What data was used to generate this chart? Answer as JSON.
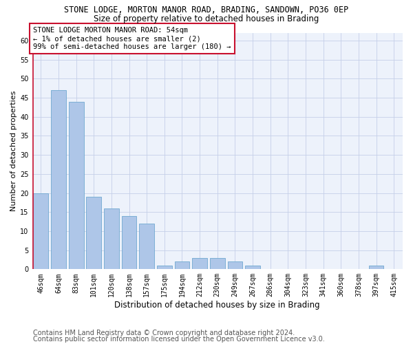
{
  "title1": "STONE LODGE, MORTON MANOR ROAD, BRADING, SANDOWN, PO36 0EP",
  "title2": "Size of property relative to detached houses in Brading",
  "xlabel": "Distribution of detached houses by size in Brading",
  "ylabel": "Number of detached properties",
  "categories": [
    "46sqm",
    "64sqm",
    "83sqm",
    "101sqm",
    "120sqm",
    "138sqm",
    "157sqm",
    "175sqm",
    "194sqm",
    "212sqm",
    "230sqm",
    "249sqm",
    "267sqm",
    "286sqm",
    "304sqm",
    "323sqm",
    "341sqm",
    "360sqm",
    "378sqm",
    "397sqm",
    "415sqm"
  ],
  "values": [
    20,
    47,
    44,
    19,
    16,
    14,
    12,
    1,
    2,
    3,
    3,
    2,
    1,
    0,
    0,
    0,
    0,
    0,
    0,
    1,
    0
  ],
  "bar_color": "#aec6e8",
  "bar_edge_color": "#6fa8d0",
  "highlight_line_color": "#c8102e",
  "annotation_text": "STONE LODGE MORTON MANOR ROAD: 54sqm\n← 1% of detached houses are smaller (2)\n99% of semi-detached houses are larger (180) →",
  "annotation_box_edge_color": "#c8102e",
  "ylim": [
    0,
    62
  ],
  "yticks": [
    0,
    5,
    10,
    15,
    20,
    25,
    30,
    35,
    40,
    45,
    50,
    55,
    60
  ],
  "footer1": "Contains HM Land Registry data © Crown copyright and database right 2024.",
  "footer2": "Contains public sector information licensed under the Open Government Licence v3.0.",
  "bg_color": "#edf2fb",
  "grid_color": "#c5cfe8",
  "title1_fontsize": 8.5,
  "title2_fontsize": 8.5,
  "xlabel_fontsize": 8.5,
  "ylabel_fontsize": 8,
  "tick_fontsize": 7,
  "annotation_fontsize": 7.5,
  "footer_fontsize": 7
}
